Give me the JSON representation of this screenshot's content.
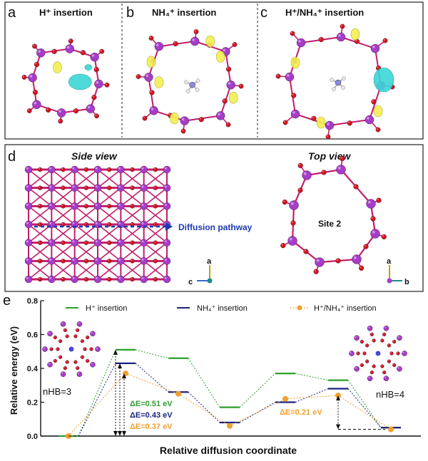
{
  "panels": {
    "a": {
      "letter": "a",
      "title": "H⁺ insertion"
    },
    "b": {
      "letter": "b",
      "title": "NH₄⁺ insertion"
    },
    "c": {
      "letter": "c",
      "title": "H⁺/NH₄⁺ insertion"
    },
    "d": {
      "letter": "d",
      "side_view": "Side view",
      "top_view": "Top view",
      "pathway_label": "Diffusion pathway",
      "site_label": "Site 2",
      "axis_a": "a",
      "axis_b": "b",
      "axis_c": "c"
    },
    "e": {
      "letter": "e",
      "nhb_left": "nHB=3",
      "nhb_right": "nHB=4"
    }
  },
  "colors": {
    "mn": "#a63cc8",
    "o": "#d4151b",
    "bond": "#c21e6a",
    "cyan": "#3cd6d6",
    "yellow": "#f2f050",
    "h_series": "#2e9e2e",
    "nh4_series": "#1a237e",
    "mix_series": "#f0a030"
  },
  "chart_data": {
    "type": "line",
    "xlabel": "Relative diffusion coordinate",
    "ylabel": "Relative energy (eV)",
    "ylim": [
      0.0,
      0.8
    ],
    "yticks": [
      "0.0",
      "0.2",
      "0.4",
      "0.6",
      "0.8"
    ],
    "x_positions": [
      0,
      1,
      2,
      3,
      4,
      5,
      6
    ],
    "series": [
      {
        "name": "H⁺ insertion",
        "style": "step",
        "color": "#2e9e2e",
        "values": [
          0.0,
          0.51,
          0.46,
          0.17,
          0.37,
          0.33,
          0.05
        ]
      },
      {
        "name": "NH₄⁺ insertion",
        "style": "step",
        "color": "#1a237e",
        "values": [
          0.0,
          0.43,
          0.26,
          0.08,
          0.2,
          0.28,
          0.05
        ]
      },
      {
        "name": "H⁺/NH₄⁺ insertion",
        "style": "points",
        "color": "#f0a030",
        "values": [
          0.0,
          0.37,
          0.25,
          0.06,
          0.22,
          0.24,
          0.04
        ]
      }
    ],
    "annotations": [
      {
        "text": "ΔE=0.51 eV",
        "color": "#2e9e2e"
      },
      {
        "text": "ΔE=0.43 eV",
        "color": "#1a237e"
      },
      {
        "text": "ΔE=0.37 eV",
        "color": "#f0a030"
      },
      {
        "text": "ΔE=0.21 eV",
        "color": "#f0a030"
      }
    ]
  }
}
